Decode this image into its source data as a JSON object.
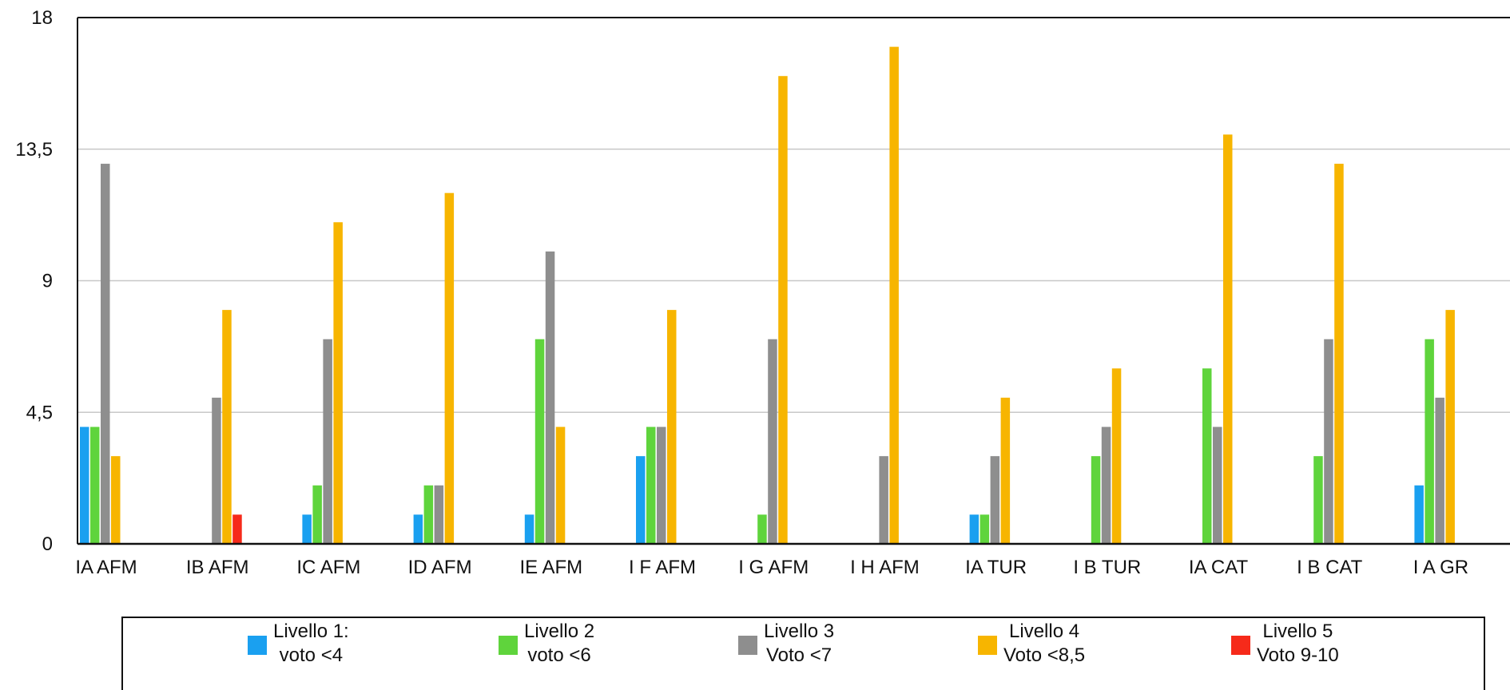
{
  "chart_data": {
    "type": "bar",
    "categories": [
      "IA AFM",
      "IB AFM",
      "IC AFM",
      "ID AFM",
      "IE AFM",
      "I F AFM",
      "I G AFM",
      "I H AFM",
      "IA  TUR",
      "I B TUR",
      "IA CAT",
      "I B CAT",
      "I A GR"
    ],
    "series": [
      {
        "name": "Livello 1: voto <4",
        "name_lines": [
          "Livello 1:",
          "voto <4"
        ],
        "color": "#1AA0F0",
        "values": [
          4,
          0,
          1,
          1,
          1,
          3,
          0,
          0,
          1,
          0,
          0,
          0,
          2
        ]
      },
      {
        "name": "Livello 2 voto <6",
        "name_lines": [
          "Livello 2",
          "voto <6"
        ],
        "color": "#5FD43C",
        "values": [
          4,
          0,
          2,
          2,
          7,
          4,
          1,
          0,
          1,
          3,
          6,
          3,
          7
        ]
      },
      {
        "name": "Livello 3 Voto <7",
        "name_lines": [
          "Livello 3",
          "Voto <7"
        ],
        "color": "#8E8E8E",
        "values": [
          13,
          5,
          7,
          2,
          10,
          4,
          7,
          3,
          3,
          4,
          4,
          7,
          5
        ]
      },
      {
        "name": "Livello 4 Voto <8,5",
        "name_lines": [
          "Livello 4",
          "Voto <8,5"
        ],
        "color": "#F7B500",
        "values": [
          3,
          8,
          11,
          12,
          4,
          8,
          16,
          17,
          5,
          6,
          14,
          13,
          8
        ]
      },
      {
        "name": "Livello 5 Voto 9-10",
        "name_lines": [
          "Livello 5",
          "Voto 9-10"
        ],
        "color": "#F62A1A",
        "values": [
          0,
          1,
          0,
          0,
          0,
          0,
          0,
          0,
          0,
          0,
          0,
          0,
          0
        ]
      }
    ],
    "y_ticks": [
      "0",
      "4,5",
      "9",
      "13,5",
      "18"
    ],
    "ylim": [
      0,
      18
    ],
    "grid": true,
    "legend_position": "bottom"
  }
}
